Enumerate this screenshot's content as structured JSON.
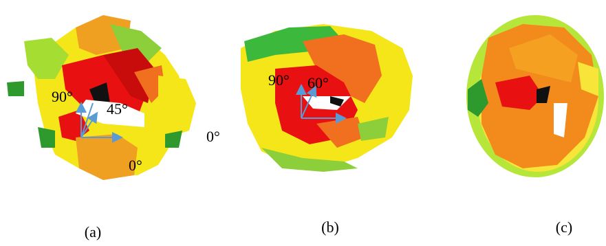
{
  "panels": [
    {
      "caption": "(a)",
      "annotations": [
        "90°",
        "45°",
        "0°"
      ]
    },
    {
      "caption": "(b)",
      "annotations": [
        "90°",
        "60°"
      ]
    },
    {
      "caption": "(c)"
    }
  ],
  "standalone_label": "0°"
}
